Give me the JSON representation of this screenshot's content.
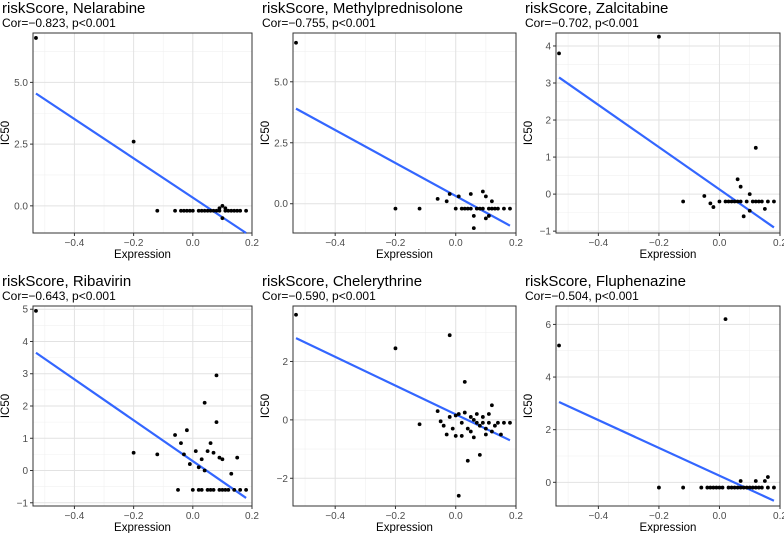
{
  "chart_data": [
    {
      "type": "scatter",
      "title": "riskScore, Nelarabine",
      "subtitle": "Cor=−0.823, p<0.001",
      "xlabel": "Expression",
      "ylabel": "IC50",
      "xlim": [
        -0.54,
        0.2
      ],
      "ylim": [
        -1.1,
        7.0
      ],
      "xticks": [
        -0.4,
        -0.2,
        0.0,
        0.2
      ],
      "xtick_labels": [
        "−0.4",
        "−0.2",
        "0.0",
        "0.2"
      ],
      "yticks": [
        0.0,
        2.5,
        5.0
      ],
      "ytick_labels": [
        "0.0",
        "2.5",
        "5.0"
      ],
      "grid": true,
      "fit_line": {
        "x": [
          -0.53,
          0.18
        ],
        "y": [
          4.55,
          -1.1
        ]
      },
      "points": [
        [
          -0.53,
          6.8
        ],
        [
          -0.2,
          2.6
        ],
        [
          -0.12,
          -0.2
        ],
        [
          -0.06,
          -0.2
        ],
        [
          -0.04,
          -0.2
        ],
        [
          -0.03,
          -0.2
        ],
        [
          -0.02,
          -0.2
        ],
        [
          -0.01,
          -0.2
        ],
        [
          0.0,
          -0.2
        ],
        [
          0.02,
          -0.2
        ],
        [
          0.03,
          -0.2
        ],
        [
          0.04,
          -0.2
        ],
        [
          0.05,
          -0.2
        ],
        [
          0.06,
          -0.2
        ],
        [
          0.07,
          -0.2
        ],
        [
          0.08,
          -0.2
        ],
        [
          0.09,
          -0.2
        ],
        [
          0.1,
          0.0
        ],
        [
          0.1,
          -0.5
        ],
        [
          0.11,
          -0.2
        ],
        [
          0.12,
          -0.2
        ],
        [
          0.13,
          -0.2
        ],
        [
          0.14,
          -0.2
        ],
        [
          0.15,
          -0.2
        ],
        [
          0.16,
          -0.2
        ],
        [
          0.18,
          -0.2
        ],
        [
          0.09,
          -0.1
        ],
        [
          0.11,
          -0.1
        ]
      ]
    },
    {
      "type": "scatter",
      "title": "riskScore, Methylprednisolone",
      "subtitle": "Cor=−0.755, p<0.001",
      "xlabel": "Expression",
      "ylabel": "IC50",
      "xlim": [
        -0.54,
        0.2
      ],
      "ylim": [
        -1.2,
        7.0
      ],
      "xticks": [
        -0.4,
        -0.2,
        0.0,
        0.2
      ],
      "xtick_labels": [
        "−0.4",
        "−0.2",
        "0.0",
        "0.2"
      ],
      "yticks": [
        0.0,
        2.5,
        5.0
      ],
      "ytick_labels": [
        "0.0",
        "2.5",
        "5.0"
      ],
      "grid": true,
      "fit_line": {
        "x": [
          -0.53,
          0.18
        ],
        "y": [
          3.9,
          -0.9
        ]
      },
      "points": [
        [
          -0.53,
          6.6
        ],
        [
          -0.2,
          -0.2
        ],
        [
          -0.12,
          -0.2
        ],
        [
          -0.06,
          0.2
        ],
        [
          -0.03,
          0.1
        ],
        [
          -0.02,
          0.4
        ],
        [
          0.0,
          -0.2
        ],
        [
          0.01,
          0.3
        ],
        [
          0.02,
          -0.2
        ],
        [
          0.03,
          -0.2
        ],
        [
          0.04,
          -0.2
        ],
        [
          0.05,
          -0.2
        ],
        [
          0.05,
          0.4
        ],
        [
          0.06,
          -0.5
        ],
        [
          0.06,
          -1.0
        ],
        [
          0.07,
          -0.2
        ],
        [
          0.08,
          -0.2
        ],
        [
          0.09,
          -0.2
        ],
        [
          0.09,
          0.5
        ],
        [
          0.1,
          -0.6
        ],
        [
          0.1,
          0.3
        ],
        [
          0.11,
          -0.2
        ],
        [
          0.12,
          -0.2
        ],
        [
          0.13,
          -0.2
        ],
        [
          0.14,
          -0.2
        ],
        [
          0.16,
          -0.2
        ],
        [
          0.18,
          -0.2
        ],
        [
          0.12,
          0.1
        ],
        [
          0.11,
          -0.5
        ]
      ]
    },
    {
      "type": "scatter",
      "title": "riskScore, Zalcitabine",
      "subtitle": "Cor=−0.702, p<0.001",
      "xlabel": "Expression",
      "ylabel": "IC50",
      "xlim": [
        -0.54,
        0.2
      ],
      "ylim": [
        -1.05,
        4.35
      ],
      "xticks": [
        -0.4,
        -0.2,
        0.0,
        0.2
      ],
      "xtick_labels": [
        "−0.4",
        "−0.2",
        "0.0",
        "0.2"
      ],
      "yticks": [
        -1,
        0,
        1,
        2,
        3,
        4
      ],
      "ytick_labels": [
        "−1",
        "0",
        "1",
        "2",
        "3",
        "4"
      ],
      "grid": true,
      "fit_line": {
        "x": [
          -0.53,
          0.18
        ],
        "y": [
          3.15,
          -0.9
        ]
      },
      "points": [
        [
          -0.53,
          3.8
        ],
        [
          -0.2,
          4.25
        ],
        [
          -0.12,
          -0.2
        ],
        [
          -0.05,
          -0.05
        ],
        [
          -0.03,
          -0.25
        ],
        [
          -0.02,
          -0.35
        ],
        [
          0.0,
          -0.2
        ],
        [
          0.02,
          -0.2
        ],
        [
          0.03,
          -0.2
        ],
        [
          0.04,
          -0.2
        ],
        [
          0.05,
          -0.2
        ],
        [
          0.06,
          0.4
        ],
        [
          0.06,
          -0.2
        ],
        [
          0.07,
          -0.2
        ],
        [
          0.07,
          0.2
        ],
        [
          0.08,
          -0.6
        ],
        [
          0.09,
          -0.2
        ],
        [
          0.1,
          0.0
        ],
        [
          0.1,
          -0.45
        ],
        [
          0.11,
          -0.2
        ],
        [
          0.12,
          1.25
        ],
        [
          0.12,
          -0.2
        ],
        [
          0.13,
          -0.2
        ],
        [
          0.14,
          -0.2
        ],
        [
          0.15,
          -0.4
        ],
        [
          0.16,
          -0.2
        ],
        [
          0.18,
          -0.2
        ]
      ]
    },
    {
      "type": "scatter",
      "title": "riskScore, Ribavirin",
      "subtitle": "Cor=−0.643, p<0.001",
      "xlabel": "Expression",
      "ylabel": "IC50",
      "xlim": [
        -0.54,
        0.2
      ],
      "ylim": [
        -1.1,
        5.1
      ],
      "xticks": [
        -0.4,
        -0.2,
        0.0,
        0.2
      ],
      "xtick_labels": [
        "−0.4",
        "−0.2",
        "0.0",
        "0.2"
      ],
      "yticks": [
        -1,
        0,
        1,
        2,
        3,
        4,
        5
      ],
      "ytick_labels": [
        "−1",
        "0",
        "1",
        "2",
        "3",
        "4",
        "5"
      ],
      "grid": true,
      "fit_line": {
        "x": [
          -0.53,
          0.18
        ],
        "y": [
          3.65,
          -0.85
        ]
      },
      "points": [
        [
          -0.53,
          4.95
        ],
        [
          -0.2,
          0.55
        ],
        [
          -0.12,
          0.5
        ],
        [
          -0.06,
          1.1
        ],
        [
          -0.04,
          0.85
        ],
        [
          -0.03,
          0.5
        ],
        [
          -0.02,
          1.25
        ],
        [
          -0.01,
          0.2
        ],
        [
          0.0,
          -0.6
        ],
        [
          0.01,
          0.6
        ],
        [
          0.02,
          -0.6
        ],
        [
          0.03,
          -0.6
        ],
        [
          0.03,
          0.35
        ],
        [
          0.04,
          0.0
        ],
        [
          0.04,
          2.1
        ],
        [
          0.05,
          -0.6
        ],
        [
          0.05,
          0.6
        ],
        [
          0.06,
          0.85
        ],
        [
          0.06,
          -0.6
        ],
        [
          0.07,
          0.55
        ],
        [
          0.07,
          -0.6
        ],
        [
          0.08,
          2.95
        ],
        [
          0.08,
          1.5
        ],
        [
          0.09,
          0.4
        ],
        [
          0.09,
          -0.6
        ],
        [
          0.1,
          0.35
        ],
        [
          0.1,
          -0.6
        ],
        [
          0.11,
          -0.6
        ],
        [
          0.12,
          -0.6
        ],
        [
          0.13,
          -0.1
        ],
        [
          0.14,
          -0.6
        ],
        [
          0.15,
          0.4
        ],
        [
          0.16,
          -0.6
        ],
        [
          0.18,
          -0.6
        ],
        [
          -0.05,
          -0.6
        ],
        [
          0.02,
          0.1
        ]
      ]
    },
    {
      "type": "scatter",
      "title": "riskScore, Chelerythrine",
      "subtitle": "Cor=−0.590, p<0.001",
      "xlabel": "Expression",
      "ylabel": "IC50",
      "xlim": [
        -0.54,
        0.2
      ],
      "ylim": [
        -2.95,
        3.9
      ],
      "xticks": [
        -0.4,
        -0.2,
        0.0,
        0.2
      ],
      "xtick_labels": [
        "−0.4",
        "−0.2",
        "0.0",
        "0.2"
      ],
      "yticks": [
        -2,
        0,
        2
      ],
      "ytick_labels": [
        "−2",
        "0",
        "2"
      ],
      "grid": true,
      "fit_line": {
        "x": [
          -0.53,
          0.18
        ],
        "y": [
          2.8,
          -0.7
        ]
      },
      "points": [
        [
          -0.53,
          3.6
        ],
        [
          -0.2,
          2.45
        ],
        [
          -0.12,
          -0.15
        ],
        [
          -0.06,
          0.3
        ],
        [
          -0.04,
          -0.2
        ],
        [
          -0.03,
          -0.5
        ],
        [
          -0.02,
          2.9
        ],
        [
          -0.02,
          0.1
        ],
        [
          -0.01,
          -0.3
        ],
        [
          0.0,
          -0.55
        ],
        [
          0.01,
          0.2
        ],
        [
          0.01,
          -2.6
        ],
        [
          0.02,
          -0.1
        ],
        [
          0.02,
          -0.55
        ],
        [
          0.03,
          1.3
        ],
        [
          0.03,
          0.25
        ],
        [
          0.04,
          -0.3
        ],
        [
          0.04,
          -1.4
        ],
        [
          0.05,
          0.1
        ],
        [
          0.05,
          -0.4
        ],
        [
          0.06,
          0.0
        ],
        [
          0.06,
          -0.6
        ],
        [
          0.07,
          -0.1
        ],
        [
          0.07,
          0.2
        ],
        [
          0.08,
          -0.2
        ],
        [
          0.08,
          -1.2
        ],
        [
          0.09,
          -0.1
        ],
        [
          0.09,
          0.1
        ],
        [
          0.1,
          -0.3
        ],
        [
          0.1,
          -0.5
        ],
        [
          0.11,
          0.2
        ],
        [
          0.11,
          -0.1
        ],
        [
          0.12,
          0.5
        ],
        [
          0.12,
          -0.4
        ],
        [
          0.13,
          -0.2
        ],
        [
          0.14,
          -0.1
        ],
        [
          0.15,
          -0.5
        ],
        [
          0.16,
          -0.1
        ],
        [
          0.18,
          -0.1
        ],
        [
          -0.05,
          -0.05
        ],
        [
          0.0,
          0.15
        ]
      ]
    },
    {
      "type": "scatter",
      "title": "riskScore, Fluphenazine",
      "subtitle": "Cor=−0.504, p<0.001",
      "xlabel": "Expression",
      "ylabel": "IC50",
      "xlim": [
        -0.54,
        0.2
      ],
      "ylim": [
        -0.9,
        6.7
      ],
      "xticks": [
        -0.4,
        -0.2,
        0.0,
        0.2
      ],
      "xtick_labels": [
        "−0.4",
        "−0.2",
        "0.0",
        "0.2"
      ],
      "yticks": [
        0,
        2,
        4,
        6
      ],
      "ytick_labels": [
        "0",
        "2",
        "4",
        "6"
      ],
      "grid": true,
      "fit_line": {
        "x": [
          -0.53,
          0.18
        ],
        "y": [
          3.05,
          -0.7
        ]
      },
      "points": [
        [
          -0.53,
          5.2
        ],
        [
          0.02,
          6.2
        ],
        [
          -0.2,
          -0.2
        ],
        [
          -0.12,
          -0.2
        ],
        [
          -0.06,
          -0.2
        ],
        [
          -0.04,
          -0.2
        ],
        [
          -0.03,
          -0.2
        ],
        [
          -0.02,
          -0.2
        ],
        [
          -0.01,
          -0.2
        ],
        [
          0.0,
          -0.2
        ],
        [
          0.01,
          -0.2
        ],
        [
          0.03,
          -0.2
        ],
        [
          0.04,
          -0.2
        ],
        [
          0.05,
          -0.2
        ],
        [
          0.06,
          -0.2
        ],
        [
          0.07,
          -0.2
        ],
        [
          0.07,
          0.05
        ],
        [
          0.08,
          -0.2
        ],
        [
          0.09,
          -0.2
        ],
        [
          0.1,
          -0.2
        ],
        [
          0.11,
          -0.2
        ],
        [
          0.12,
          -0.2
        ],
        [
          0.13,
          -0.2
        ],
        [
          0.14,
          -0.2
        ],
        [
          0.15,
          0.05
        ],
        [
          0.16,
          -0.2
        ],
        [
          0.16,
          0.2
        ],
        [
          0.18,
          -0.2
        ],
        [
          0.12,
          0.05
        ]
      ]
    }
  ]
}
